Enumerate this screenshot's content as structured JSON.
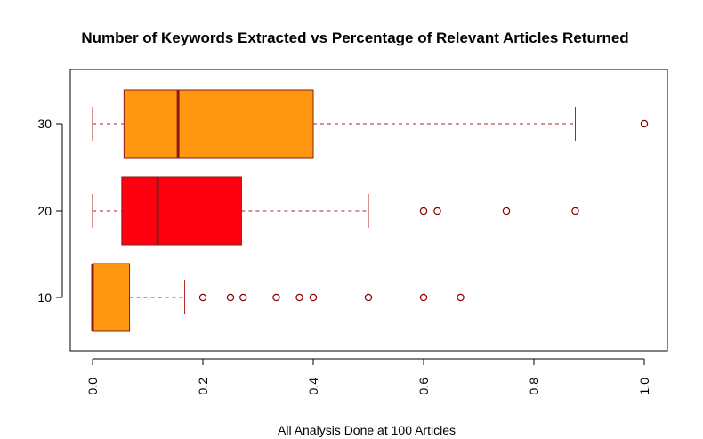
{
  "chart_data": {
    "type": "boxplot",
    "orientation": "horizontal",
    "title": "Number of Keywords Extracted vs Percentage of Relevant Articles Returned",
    "xlabel": "All Analysis Done at 100 Articles",
    "ylabel": "",
    "xlim": [
      0.0,
      1.0
    ],
    "x_ticks": [
      "0.0",
      "0.2",
      "0.4",
      "0.6",
      "0.8",
      "1.0"
    ],
    "x_tick_values": [
      0.0,
      0.2,
      0.4,
      0.6,
      0.8,
      1.0
    ],
    "categories": [
      "10",
      "20",
      "30"
    ],
    "grid": false,
    "box_border_color": "#8B1A1A",
    "whisker_color": "#B22222",
    "outlier_color": "#8B0000",
    "series": [
      {
        "category": "10",
        "fill": "#FF9810",
        "whisker_low": 0.0,
        "q1": 0.0,
        "median": 0.0,
        "q3": 0.067,
        "whisker_high": 0.167,
        "outliers": [
          0.2,
          0.25,
          0.273,
          0.333,
          0.375,
          0.4,
          0.5,
          0.6,
          0.667
        ]
      },
      {
        "category": "20",
        "fill": "#FF0010",
        "whisker_low": 0.0,
        "q1": 0.053,
        "median": 0.118,
        "q3": 0.27,
        "whisker_high": 0.5,
        "outliers": [
          0.6,
          0.625,
          0.75,
          0.875
        ]
      },
      {
        "category": "30",
        "fill": "#FF9810",
        "whisker_low": 0.0,
        "q1": 0.057,
        "median": 0.155,
        "q3": 0.4,
        "whisker_high": 0.875,
        "outliers": [
          1.0
        ]
      }
    ]
  }
}
